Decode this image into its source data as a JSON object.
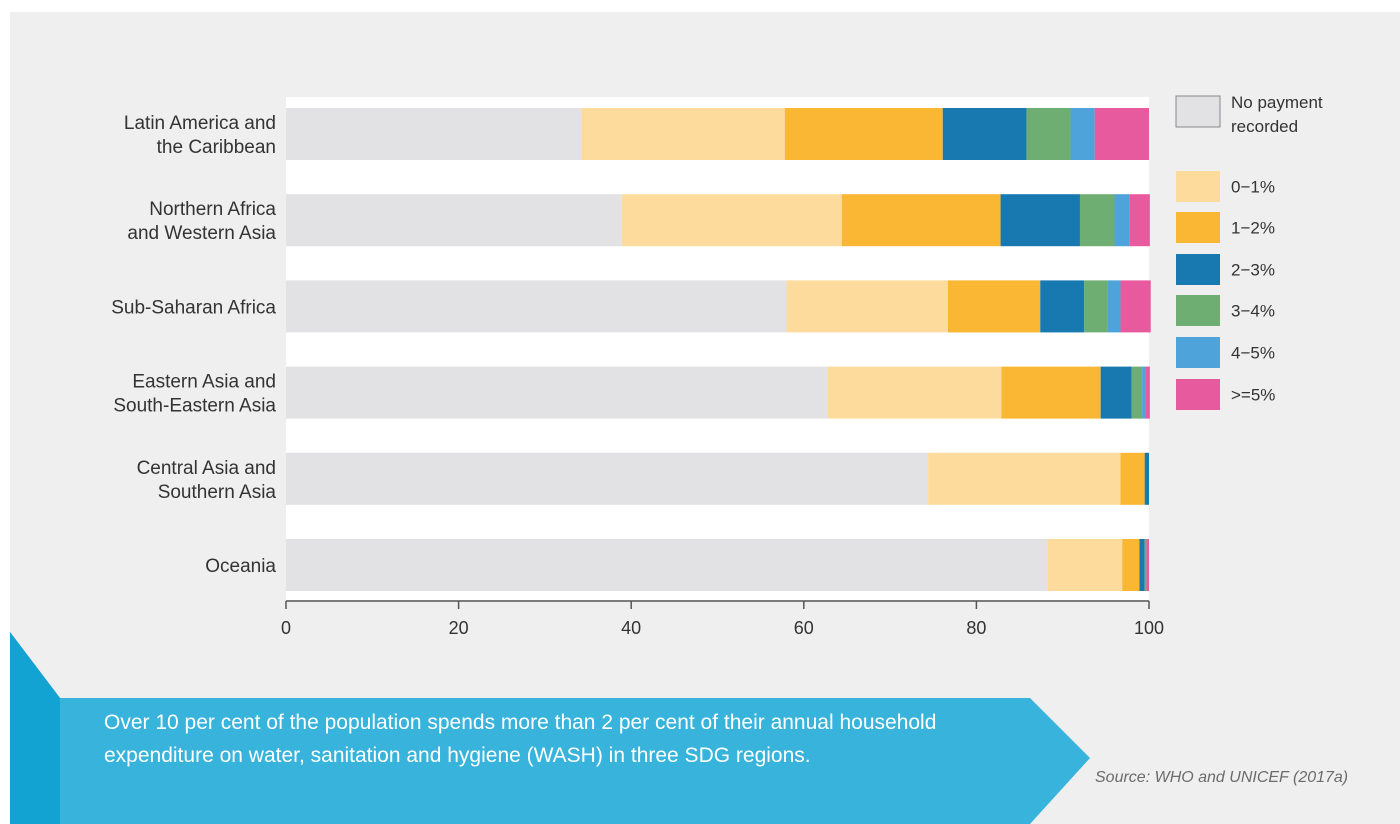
{
  "chart_data": {
    "type": "bar",
    "orientation": "horizontal",
    "stacked": true,
    "categories": [
      [
        "Latin America and",
        "the Caribbean"
      ],
      [
        "Northern Africa",
        "and Western Asia"
      ],
      [
        "Sub-Saharan Africa"
      ],
      [
        "Eastern Asia and",
        "South-Eastern Asia"
      ],
      [
        "Central Asia and",
        "Southern Asia"
      ],
      [
        "Oceania"
      ]
    ],
    "series": [
      {
        "name": "No payment recorded",
        "color": "#e2e2e4",
        "values": [
          34.2,
          38.9,
          58.0,
          62.8,
          74.4,
          88.2
        ]
      },
      {
        "name": "0-1%",
        "color": "#fddb9c",
        "values": [
          23.6,
          25.5,
          18.7,
          20.1,
          22.3,
          8.7
        ]
      },
      {
        "name": "1-2%",
        "color": "#fab733",
        "values": [
          18.3,
          18.4,
          10.7,
          11.5,
          2.8,
          2.0
        ]
      },
      {
        "name": "2-3%",
        "color": "#1878b0",
        "values": [
          9.7,
          9.2,
          5.1,
          3.6,
          0.5,
          0.6
        ]
      },
      {
        "name": "3-4%",
        "color": "#6fae72",
        "values": [
          5.1,
          4.0,
          2.7,
          1.2,
          0.0,
          0.2
        ]
      },
      {
        "name": "4-5%",
        "color": "#4da3da",
        "values": [
          2.8,
          1.7,
          1.5,
          0.4,
          0.0,
          0.0
        ]
      },
      {
        "name": ">=5%",
        "color": "#e75b9e",
        "values": [
          6.3,
          2.4,
          3.5,
          0.5,
          0.0,
          0.3
        ]
      }
    ],
    "xlim": [
      0,
      100
    ],
    "xticks": [
      0,
      20,
      40,
      60,
      80,
      100
    ],
    "legend_labels": [
      [
        "No payment",
        "recorded"
      ],
      [
        "0−1%"
      ],
      [
        "1−2%"
      ],
      [
        "2−3%"
      ],
      [
        "3−4%"
      ],
      [
        "4−5%"
      ],
      [
        ">=5%"
      ]
    ],
    "legend_position": "right",
    "grid": false
  },
  "callout": {
    "text": "Over 10 per cent of the population spends more than 2 per cent of their annual household expenditure on water, sanitation and hygiene (WASH) in three SDG regions."
  },
  "source": "Source: WHO and UNICEF (2017a)"
}
